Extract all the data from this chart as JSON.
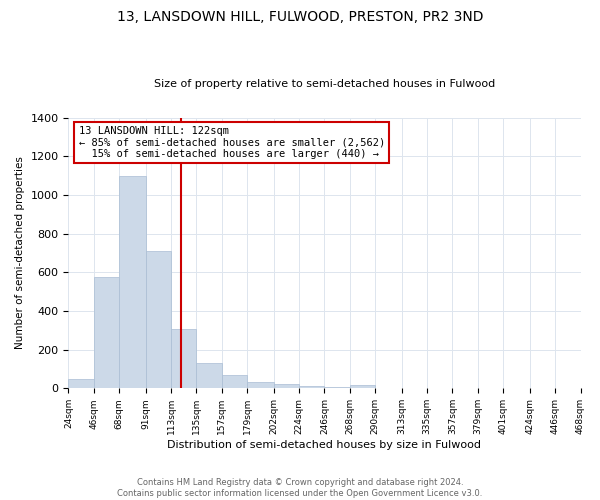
{
  "title": "13, LANSDOWN HILL, FULWOOD, PRESTON, PR2 3ND",
  "subtitle": "Size of property relative to semi-detached houses in Fulwood",
  "xlabel": "Distribution of semi-detached houses by size in Fulwood",
  "ylabel": "Number of semi-detached properties",
  "bar_color": "#ccd9e8",
  "bar_edge_color": "#aabdd4",
  "annotation_line_color": "#cc0000",
  "annotation_box_color": "#cc0000",
  "annotation_line1": "13 LANSDOWN HILL: 122sqm",
  "annotation_line2": "← 85% of semi-detached houses are smaller (2,562)",
  "annotation_line3": "  15% of semi-detached houses are larger (440) →",
  "property_size": 122,
  "footnote1": "Contains HM Land Registry data © Crown copyright and database right 2024.",
  "footnote2": "Contains public sector information licensed under the Open Government Licence v3.0.",
  "bin_edges": [
    24,
    46,
    68,
    91,
    113,
    135,
    157,
    179,
    202,
    224,
    246,
    268,
    290,
    313,
    335,
    357,
    379,
    401,
    424,
    446,
    468
  ],
  "bin_counts": [
    50,
    575,
    1100,
    710,
    305,
    130,
    70,
    35,
    20,
    10,
    5,
    15,
    0,
    0,
    0,
    0,
    0,
    0,
    0,
    0
  ],
  "ylim": [
    0,
    1400
  ],
  "yticks": [
    0,
    200,
    400,
    600,
    800,
    1000,
    1200,
    1400
  ],
  "background_color": "#ffffff",
  "grid_color": "#dde5ee"
}
